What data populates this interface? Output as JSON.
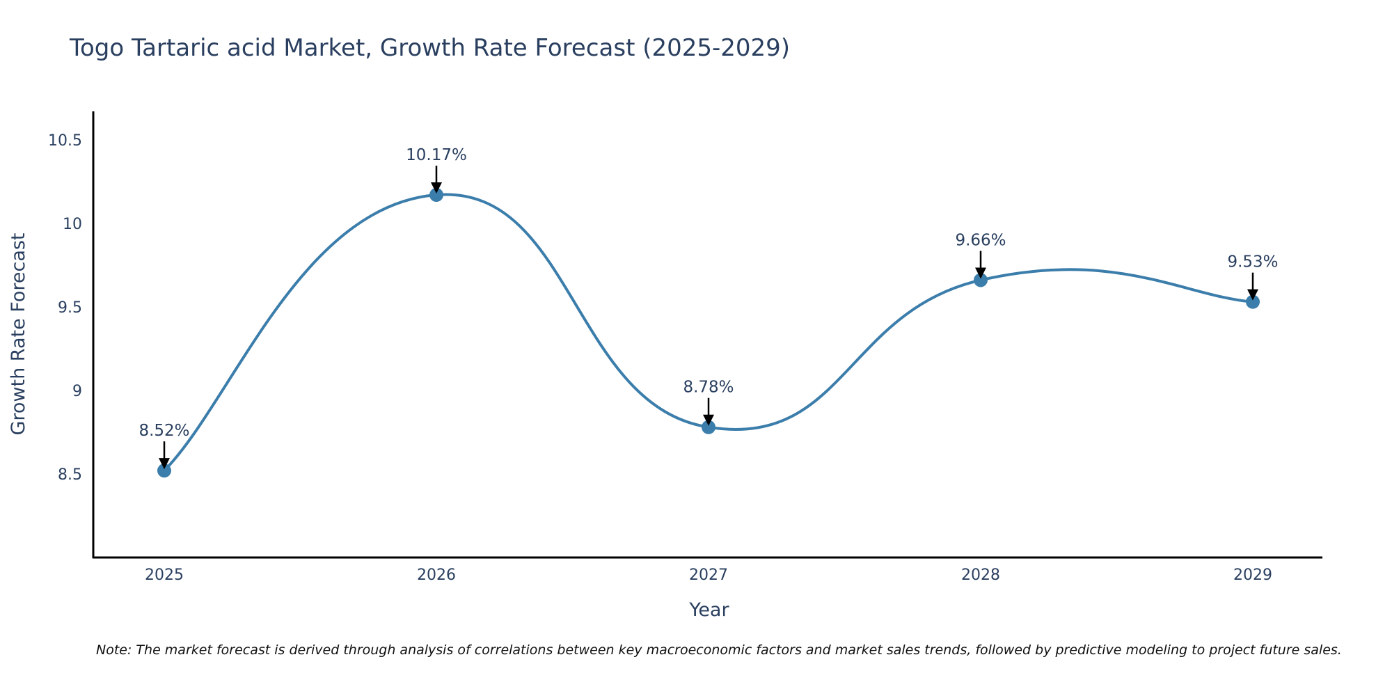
{
  "colors": {
    "line": "#3b7dab",
    "marker": "#3b7dab",
    "arrow": "#000000",
    "text": "#2a3f5f"
  },
  "chart_data": {
    "type": "line",
    "title": "Togo Tartaric acid Market, Growth Rate Forecast (2025-2029)",
    "xlabel": "Year",
    "ylabel": "Growth Rate Forecast",
    "categories": [
      "2025",
      "2026",
      "2027",
      "2028",
      "2029"
    ],
    "series": [
      {
        "name": "Growth Rate Forecast",
        "values": [
          8.52,
          10.17,
          8.78,
          9.66,
          9.53
        ]
      }
    ],
    "data_labels": [
      "8.52%",
      "10.17%",
      "8.78%",
      "9.66%",
      "9.53%"
    ],
    "ylim": [
      8.0,
      10.67
    ],
    "yticks": [
      8.5,
      9,
      9.5,
      10,
      10.5
    ],
    "ytick_labels": [
      "8.5",
      "9",
      "9.5",
      "10",
      "10.5"
    ],
    "line_shape": "spline",
    "grid": false,
    "legend": "none"
  },
  "note": "Note: The market forecast is derived through analysis of correlations between key macroeconomic factors and market sales trends, followed by predictive modeling to project future sales."
}
